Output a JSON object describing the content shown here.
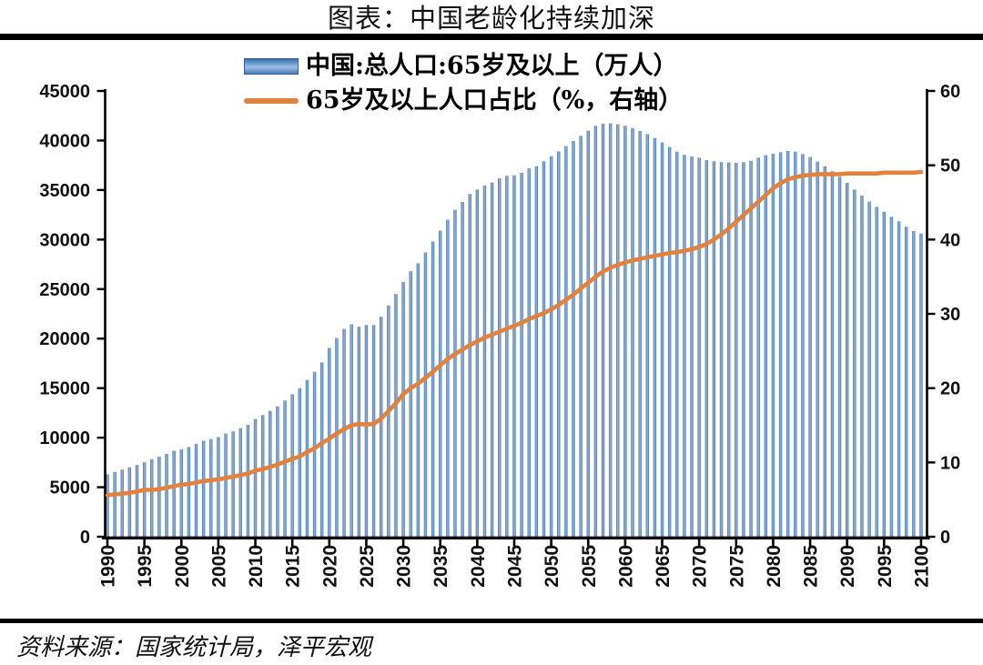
{
  "page": {
    "title": "图表：中国老龄化持续加深",
    "source": "资料来源：国家统计局，泽平宏观"
  },
  "colors": {
    "bar": "#4f81bd",
    "bar_edge": "#3c6ca6",
    "bar_center": "#84abd8",
    "line": "#e2813c",
    "axis": "#000000",
    "text": "#111111"
  },
  "chart_data": {
    "type": "bar",
    "subtype": "combo-bar-line-dual-axis",
    "title": "图表：中国老龄化持续加深",
    "grid": false,
    "legend_position": "top-center",
    "x_start_year": 1990,
    "x_end_year": 2100,
    "x_tick_years": [
      1990,
      1995,
      2000,
      2005,
      2010,
      2015,
      2020,
      2025,
      2030,
      2035,
      2040,
      2045,
      2050,
      2055,
      2060,
      2065,
      2070,
      2075,
      2080,
      2085,
      2090,
      2095,
      2100
    ],
    "left_axis": {
      "min": 0,
      "max": 45000,
      "step": 5000,
      "ticks": [
        0,
        5000,
        10000,
        15000,
        20000,
        25000,
        30000,
        35000,
        40000,
        45000
      ]
    },
    "right_axis": {
      "min": 0,
      "max": 60,
      "step": 10,
      "ticks": [
        0,
        10,
        20,
        30,
        40,
        50,
        60
      ]
    },
    "series": [
      {
        "name": "中国:总人口:65岁及以上（万人）",
        "type": "bar",
        "axis": "left",
        "color": "#4f81bd",
        "values": [
          6300,
          6540,
          6780,
          7010,
          7240,
          7510,
          7830,
          8090,
          8360,
          8680,
          8820,
          9060,
          9380,
          9690,
          9860,
          10060,
          10420,
          10640,
          10960,
          11310,
          11890,
          12290,
          12710,
          13160,
          13760,
          14390,
          15000,
          15830,
          16660,
          17600,
          19060,
          20060,
          20980,
          21450,
          21200,
          21370,
          21370,
          22200,
          23350,
          24500,
          25700,
          26800,
          27600,
          28700,
          29800,
          30900,
          32000,
          33000,
          33800,
          34600,
          35050,
          35450,
          35750,
          36180,
          36430,
          36490,
          36730,
          37190,
          37400,
          37900,
          38420,
          38900,
          39430,
          39950,
          40470,
          41000,
          41480,
          41700,
          41730,
          41640,
          41480,
          41260,
          40960,
          40650,
          40250,
          39800,
          39340,
          38870,
          38550,
          38380,
          38270,
          38020,
          37900,
          37810,
          37780,
          37750,
          37810,
          37960,
          38270,
          38510,
          38660,
          38820,
          38940,
          38880,
          38630,
          38330,
          37870,
          37410,
          36890,
          36340,
          35720,
          35050,
          34440,
          33820,
          33310,
          32810,
          32300,
          31840,
          31290,
          30860,
          30610
        ]
      },
      {
        "name": "65岁及以上人口占比（%，右轴）",
        "type": "line",
        "axis": "right",
        "color": "#e2813c",
        "values": [
          5.6,
          5.7,
          5.8,
          5.9,
          6.1,
          6.3,
          6.3,
          6.4,
          6.6,
          6.8,
          7.0,
          7.1,
          7.3,
          7.5,
          7.6,
          7.7,
          7.9,
          8.1,
          8.3,
          8.5,
          8.9,
          9.1,
          9.4,
          9.7,
          10.1,
          10.5,
          10.8,
          11.4,
          11.9,
          12.6,
          13.2,
          13.9,
          14.5,
          15.0,
          15.2,
          15.1,
          15.2,
          15.9,
          16.9,
          18.0,
          19.2,
          20.0,
          20.6,
          21.4,
          22.2,
          23.1,
          23.9,
          24.6,
          25.2,
          25.8,
          26.3,
          26.8,
          27.2,
          27.6,
          28.0,
          28.4,
          28.8,
          29.3,
          29.7,
          30.1,
          30.6,
          31.2,
          31.9,
          32.6,
          33.4,
          34.2,
          35.0,
          35.7,
          36.2,
          36.6,
          36.9,
          37.2,
          37.4,
          37.6,
          37.8,
          38.0,
          38.2,
          38.3,
          38.5,
          38.7,
          39.0,
          39.4,
          40.0,
          40.7,
          41.5,
          42.4,
          43.3,
          44.2,
          45.1,
          46.0,
          46.9,
          47.6,
          48.1,
          48.4,
          48.6,
          48.7,
          48.8,
          48.8,
          48.8,
          48.8,
          48.9,
          48.9,
          48.9,
          48.9,
          48.9,
          49.0,
          49.0,
          49.0,
          49.0,
          49.0,
          49.1
        ]
      }
    ]
  }
}
